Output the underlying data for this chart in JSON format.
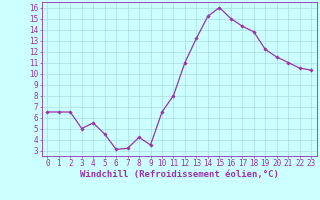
{
  "x": [
    0,
    1,
    2,
    3,
    4,
    5,
    6,
    7,
    8,
    9,
    10,
    11,
    12,
    13,
    14,
    15,
    16,
    17,
    18,
    19,
    20,
    21,
    22,
    23
  ],
  "y": [
    6.5,
    6.5,
    6.5,
    5.0,
    5.5,
    4.5,
    3.1,
    3.2,
    4.2,
    3.5,
    6.5,
    8.0,
    11.0,
    13.2,
    15.2,
    16.0,
    15.0,
    14.3,
    13.8,
    12.2,
    11.5,
    11.0,
    10.5,
    10.3
  ],
  "line_color": "#9933aa",
  "marker": "D",
  "marker_size": 1.8,
  "linewidth": 0.9,
  "xlabel": "Windchill (Refroidissement éolien,°C)",
  "xlim": [
    -0.5,
    23.5
  ],
  "ylim": [
    2.5,
    16.5
  ],
  "yticks": [
    3,
    4,
    5,
    6,
    7,
    8,
    9,
    10,
    11,
    12,
    13,
    14,
    15,
    16
  ],
  "xticks": [
    0,
    1,
    2,
    3,
    4,
    5,
    6,
    7,
    8,
    9,
    10,
    11,
    12,
    13,
    14,
    15,
    16,
    17,
    18,
    19,
    20,
    21,
    22,
    23
  ],
  "bg_color": "#ccffff",
  "grid_color": "#aadddd",
  "line_border_color": "#9933aa",
  "tick_color": "#9933aa",
  "label_color": "#9933aa",
  "xlabel_fontsize": 6.5,
  "tick_fontsize": 5.5,
  "font_family": "monospace"
}
